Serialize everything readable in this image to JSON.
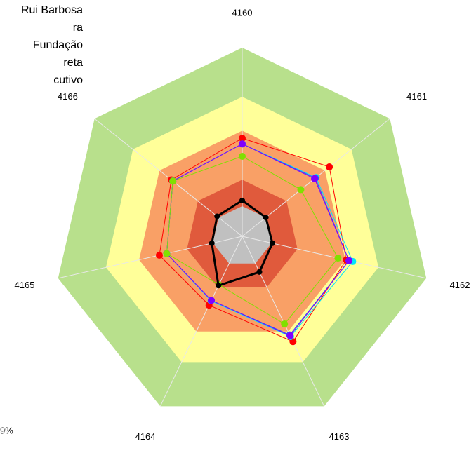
{
  "chart_data": {
    "type": "radar",
    "categories": [
      "4160",
      "4161",
      "4162",
      "4163",
      "4164",
      "4165",
      "4166"
    ],
    "ylim": [
      0,
      100
    ],
    "bands": [
      {
        "value": 100,
        "color": "#b8e08c"
      },
      {
        "value": 74,
        "color": "#ffff99"
      },
      {
        "value": 56,
        "color": "#f9a066"
      },
      {
        "value": 30,
        "color": "#e05a3c"
      },
      {
        "value": 16,
        "color": "#c0c0c0"
      }
    ],
    "series": [
      {
        "name": "Rui Barbosa",
        "color": "#ff0000",
        "values": [
          52,
          59,
          56.5,
          62,
          40.5,
          45,
          48
        ]
      },
      {
        "name": "ra",
        "color": "#00e5ff",
        "values": [
          49,
          50,
          60,
          59,
          38,
          41,
          47
        ]
      },
      {
        "name": "Fundação",
        "color": "#3050ff",
        "values": [
          49,
          49.5,
          58,
          58,
          37.7,
          41,
          47
        ]
      },
      {
        "name": "reta",
        "color": "#8000ff",
        "values": [
          49,
          49,
          58,
          58.5,
          37.7,
          41,
          47
        ]
      },
      {
        "name": "cutivo",
        "color": "#80e000",
        "values": [
          42.4,
          39.7,
          52,
          51.6,
          28.5,
          41,
          47
        ]
      },
      {
        "color": "#000000",
        "values": [
          19,
          16,
          16.4,
          21,
          29,
          16.5,
          17
        ]
      }
    ],
    "annotation": "9%"
  }
}
